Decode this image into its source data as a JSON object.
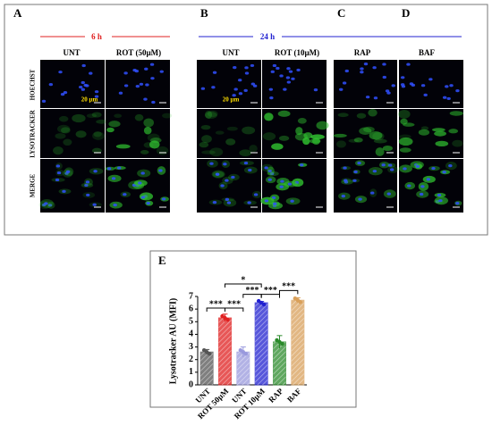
{
  "figure": {
    "panels": [
      "A",
      "B",
      "C",
      "D"
    ],
    "times": [
      "6 h",
      "24 h"
    ],
    "columns": [
      "UNT",
      "ROT (50µM)",
      "UNT",
      "ROT (10µM)",
      "RAP",
      "BAF"
    ],
    "rows": [
      "HOECHST",
      "LYSOTRACKER",
      "MERGE"
    ],
    "scale_bar": "20 µm"
  },
  "chart_data": {
    "type": "bar",
    "panel": "E",
    "ylabel": "Lysotracker AU (MFI)",
    "categories": [
      "UNT",
      "ROT 50µM",
      "UNT",
      "ROT 10µM",
      "RAP",
      "BAF"
    ],
    "values": [
      2.6,
      5.3,
      2.6,
      6.5,
      3.4,
      6.7
    ],
    "errors": [
      0.2,
      0.3,
      0.4,
      0.1,
      0.5,
      0.2
    ],
    "colors": [
      "#555555",
      "#e02020",
      "#9999dd",
      "#2020d0",
      "#2a8a2a",
      "#d9a05a"
    ],
    "ylim": [
      0,
      7
    ],
    "yticks": [
      0,
      1,
      2,
      3,
      4,
      5,
      6,
      7
    ],
    "significance": [
      "***",
      "***",
      "***",
      "***",
      "***",
      "*"
    ]
  }
}
